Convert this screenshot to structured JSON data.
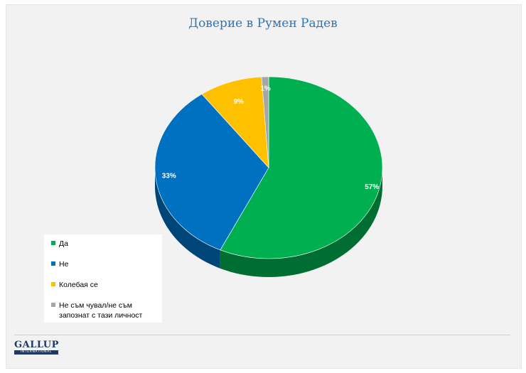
{
  "chart_data": {
    "type": "pie",
    "title": "Доверие в Румен Радев",
    "categories": [
      "Да",
      "Не",
      "Колебая се",
      "Не съм чувал/не съм запознат с тази личност"
    ],
    "values": [
      57,
      33,
      9,
      1
    ],
    "data_labels": [
      "57%",
      "33%",
      "9%",
      "1%"
    ],
    "colors": [
      "#00b050",
      "#0070c0",
      "#ffc000",
      "#a6a6a6"
    ],
    "legend_position": "bottom-left"
  },
  "logo": {
    "main": "GALLUP",
    "sub": "INTERNATIONAL"
  }
}
